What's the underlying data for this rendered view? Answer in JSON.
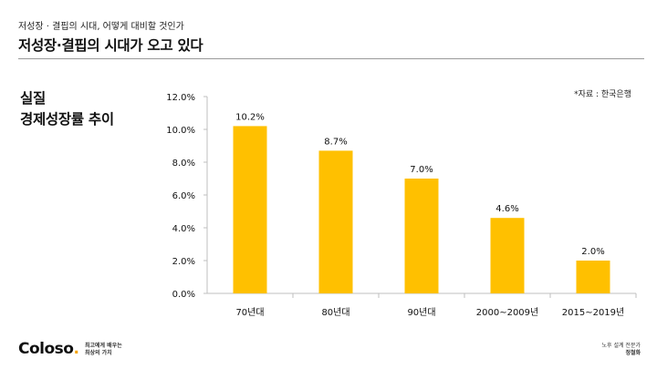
{
  "header": {
    "subtitle": "저성장 · 결핍의 시대, 어떻게 대비할 것인가",
    "title": "저성장·결핍의 시대가 오고 있다"
  },
  "footer": {
    "logo_text": "Coloso",
    "logo_dot": ".",
    "slogan_line1": "최고에게 배우는",
    "slogan_line2": "최상의 가치",
    "author_role": "노후 설계 전문가",
    "author_name": "정철화"
  },
  "colors": {
    "bar": "#FFC000",
    "accent": "#f5a300"
  },
  "chart_data": {
    "type": "bar",
    "title_line1": "실질",
    "title_line2": "경제성장률 추이",
    "source": "*자료 : 한국은행",
    "categories": [
      "70년대",
      "80년대",
      "90년대",
      "2000~2009년",
      "2015~2019년"
    ],
    "values": [
      10.2,
      8.7,
      7.0,
      4.6,
      2.0
    ],
    "value_labels": [
      "10.2%",
      "8.7%",
      "7.0%",
      "4.6%",
      "2.0%"
    ],
    "ylim": [
      0,
      12
    ],
    "yticks": [
      0,
      2,
      4,
      6,
      8,
      10,
      12
    ],
    "ytick_labels": [
      "0.0%",
      "2.0%",
      "4.0%",
      "6.0%",
      "8.0%",
      "10.0%",
      "12.0%"
    ],
    "grid": false
  }
}
